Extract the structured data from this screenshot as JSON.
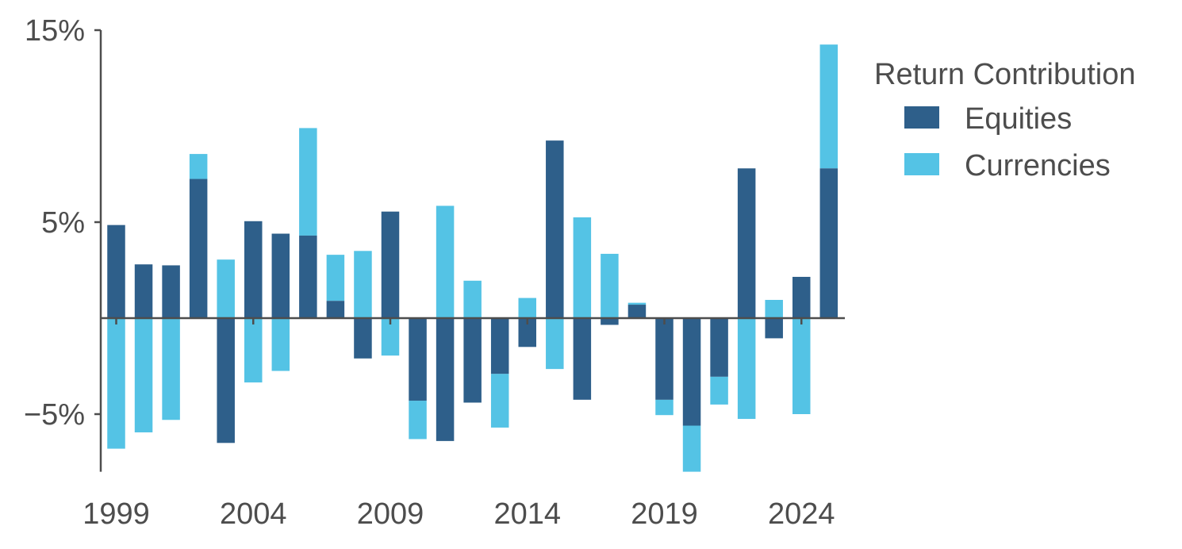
{
  "chart_data": {
    "type": "bar",
    "stacked": true,
    "x": [
      1999,
      2000,
      2001,
      2002,
      2003,
      2004,
      2005,
      2006,
      2007,
      2008,
      2009,
      2010,
      2011,
      2012,
      2013,
      2014,
      2015,
      2016,
      2017,
      2018,
      2019,
      2020,
      2021,
      2022,
      2023,
      2024,
      2025
    ],
    "x_tick_labels": [
      "1999",
      "2004",
      "2009",
      "2014",
      "2019",
      "2024"
    ],
    "x_tick_values": [
      1999,
      2004,
      2009,
      2014,
      2019,
      2024
    ],
    "y_tick_labels": [
      "15%",
      "5%",
      "−5%"
    ],
    "y_tick_values": [
      15,
      5,
      -5
    ],
    "ylim": [
      -8,
      15
    ],
    "series": [
      {
        "name": "Equities",
        "color": "#2e5f8a",
        "values": [
          4.85,
          2.8,
          2.75,
          7.25,
          -6.5,
          5.05,
          4.4,
          4.3,
          0.9,
          -2.1,
          5.55,
          -4.3,
          -6.4,
          -4.4,
          -2.9,
          -1.5,
          9.25,
          -4.25,
          -0.35,
          0.7,
          -4.25,
          -5.6,
          -3.05,
          7.8,
          -1.05,
          2.15,
          7.8
        ]
      },
      {
        "name": "Currencies",
        "color": "#54c3e5",
        "values": [
          -6.8,
          -5.95,
          -5.3,
          1.3,
          3.05,
          -3.35,
          -2.75,
          5.6,
          2.4,
          3.5,
          -1.95,
          -2.0,
          5.85,
          1.95,
          -2.8,
          1.05,
          -2.65,
          5.25,
          3.35,
          0.1,
          -0.8,
          -2.4,
          -1.45,
          -5.25,
          0.95,
          -5.0,
          6.45
        ]
      }
    ],
    "legend": {
      "title": "Return Contribution",
      "placement": "top-right"
    },
    "grid": false
  }
}
